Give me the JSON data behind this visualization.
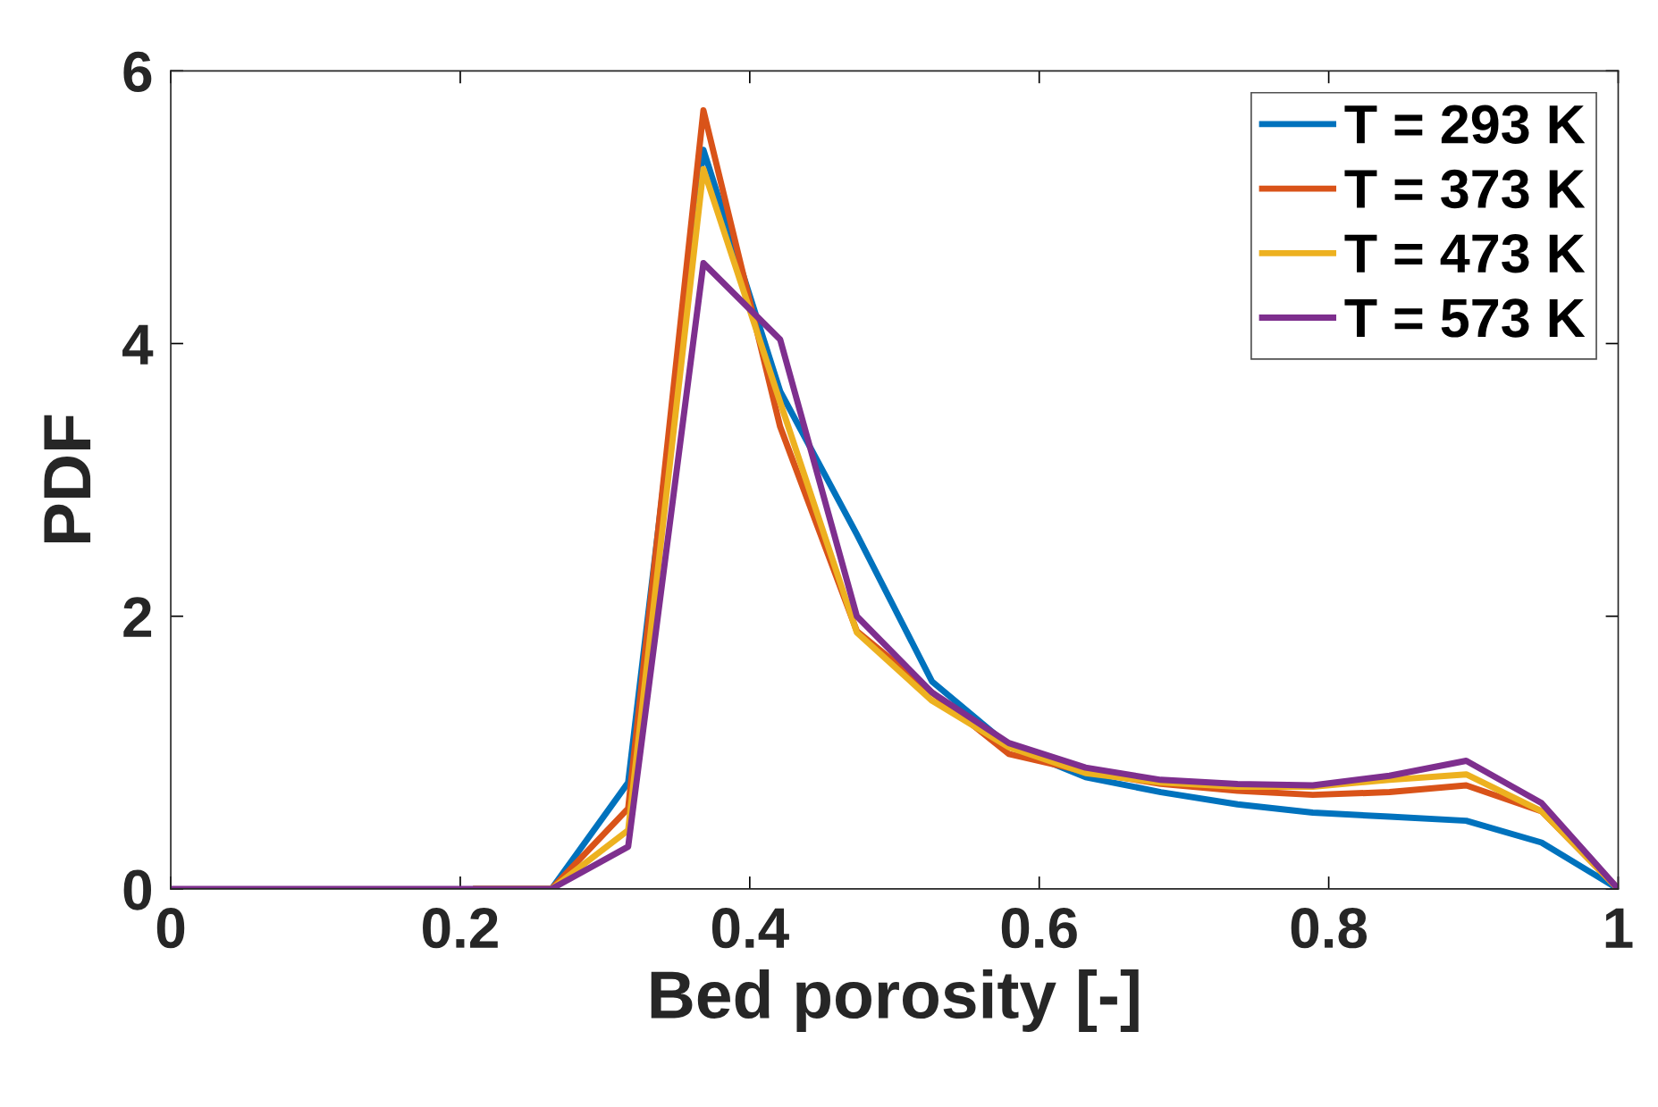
{
  "chart_data": {
    "type": "line",
    "xlabel": "Bed porosity [-]",
    "ylabel": "PDF",
    "x": [
      0,
      0.053,
      0.105,
      0.158,
      0.211,
      0.263,
      0.316,
      0.368,
      0.421,
      0.474,
      0.526,
      0.579,
      0.632,
      0.684,
      0.737,
      0.789,
      0.842,
      0.895,
      0.947,
      1
    ],
    "series": [
      {
        "name": "T = 293 K",
        "color": "#0072bd",
        "values": [
          null,
          null,
          null,
          null,
          0,
          0,
          0.78,
          5.42,
          3.65,
          2.6,
          1.52,
          1.05,
          0.82,
          0.71,
          0.62,
          0.56,
          0.53,
          0.5,
          0.34,
          0
        ]
      },
      {
        "name": "T = 373 K",
        "color": "#d95319",
        "values": [
          null,
          null,
          null,
          null,
          0,
          0,
          0.59,
          5.71,
          3.39,
          1.89,
          1.44,
          0.99,
          0.86,
          0.77,
          0.72,
          0.69,
          0.71,
          0.76,
          0.57,
          0
        ]
      },
      {
        "name": "T = 473 K",
        "color": "#edb120",
        "values": [
          null,
          null,
          null,
          null,
          0,
          0,
          0.43,
          5.28,
          3.57,
          1.88,
          1.38,
          1.04,
          0.85,
          0.78,
          0.75,
          0.75,
          0.8,
          0.84,
          0.57,
          0
        ]
      },
      {
        "name": "T = 573 K",
        "color": "#7e2f8e",
        "values": [
          0,
          0,
          0,
          0,
          0,
          0,
          0.31,
          4.59,
          4.03,
          2.0,
          1.44,
          1.07,
          0.89,
          0.8,
          0.77,
          0.76,
          0.83,
          0.94,
          0.63,
          0
        ]
      }
    ],
    "xlim": [
      0,
      1
    ],
    "ylim": [
      0,
      6
    ],
    "xticks": [
      0,
      0.2,
      0.4,
      0.6,
      0.8,
      1
    ],
    "yticks": [
      0,
      2,
      4,
      6
    ],
    "grid": false,
    "legend": "top right",
    "marker": "none",
    "line_style": "solid"
  }
}
